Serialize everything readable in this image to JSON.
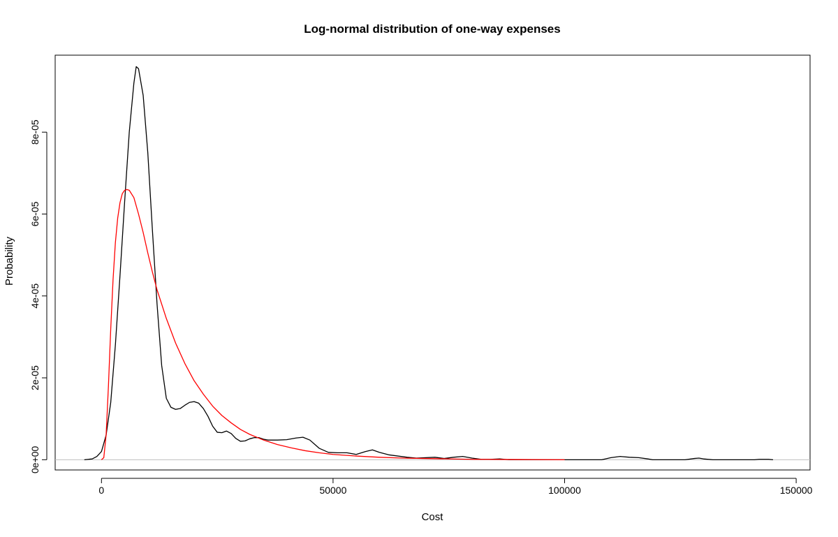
{
  "chart_data": {
    "type": "line",
    "title": "Log-normal distribution of one-way expenses",
    "xlabel": "Cost",
    "ylabel": "Probability",
    "xlim": [
      -10000,
      153000
    ],
    "ylim": [
      -2.5e-06,
      9.88e-05
    ],
    "x_ticks": [
      0,
      50000,
      100000,
      150000
    ],
    "x_tick_labels": [
      "0",
      "50000",
      "100000",
      "150000"
    ],
    "y_ticks": [
      0,
      2e-05,
      4e-05,
      6e-05,
      8e-05
    ],
    "y_tick_labels": [
      "0e+00",
      "2e-05",
      "4e-05",
      "6e-05",
      "8e-05"
    ],
    "reference_line": {
      "y": 0,
      "color": "#bebebe"
    },
    "grid": false,
    "series": [
      {
        "color": "#000000",
        "points": [
          [
            -3700,
            0
          ],
          [
            -2000,
            2e-07
          ],
          [
            -1000,
            8e-07
          ],
          [
            0,
            2e-06
          ],
          [
            1000,
            6e-06
          ],
          [
            2000,
            1.4e-05
          ],
          [
            3000,
            2.8e-05
          ],
          [
            4000,
            4.5e-05
          ],
          [
            5000,
            6.3e-05
          ],
          [
            6000,
            8e-05
          ],
          [
            7000,
            9.2e-05
          ],
          [
            7500,
            9.6e-05
          ],
          [
            8000,
            9.55e-05
          ],
          [
            9000,
            8.9e-05
          ],
          [
            10000,
            7.5e-05
          ],
          [
            11000,
            5.6e-05
          ],
          [
            12000,
            3.8e-05
          ],
          [
            13000,
            2.3e-05
          ],
          [
            14000,
            1.5e-05
          ],
          [
            15000,
            1.28e-05
          ],
          [
            16000,
            1.23e-05
          ],
          [
            17000,
            1.25e-05
          ],
          [
            18000,
            1.33e-05
          ],
          [
            19000,
            1.4e-05
          ],
          [
            20000,
            1.42e-05
          ],
          [
            21000,
            1.38e-05
          ],
          [
            22000,
            1.25e-05
          ],
          [
            23000,
            1.06e-05
          ],
          [
            24000,
            8.2e-06
          ],
          [
            25000,
            6.7e-06
          ],
          [
            26000,
            6.6e-06
          ],
          [
            27000,
            7e-06
          ],
          [
            28000,
            6.4e-06
          ],
          [
            29000,
            5.2e-06
          ],
          [
            30000,
            4.5e-06
          ],
          [
            31000,
            4.6e-06
          ],
          [
            32000,
            5.1e-06
          ],
          [
            33000,
            5.4e-06
          ],
          [
            34000,
            5.4e-06
          ],
          [
            35000,
            5e-06
          ],
          [
            36000,
            4.8e-06
          ],
          [
            38000,
            4.8e-06
          ],
          [
            40000,
            4.9e-06
          ],
          [
            42000,
            5.3e-06
          ],
          [
            43500,
            5.5e-06
          ],
          [
            45000,
            4.8e-06
          ],
          [
            47000,
            2.8e-06
          ],
          [
            49000,
            1.8e-06
          ],
          [
            51000,
            1.7e-06
          ],
          [
            53000,
            1.7e-06
          ],
          [
            55000,
            1.3e-06
          ],
          [
            57000,
            2e-06
          ],
          [
            58500,
            2.4e-06
          ],
          [
            60000,
            1.8e-06
          ],
          [
            62000,
            1.2e-06
          ],
          [
            64000,
            9e-07
          ],
          [
            66000,
            6e-07
          ],
          [
            68000,
            4e-07
          ],
          [
            70000,
            5e-07
          ],
          [
            72000,
            6e-07
          ],
          [
            74000,
            3e-07
          ],
          [
            76000,
            6e-07
          ],
          [
            78000,
            8e-07
          ],
          [
            80000,
            4e-07
          ],
          [
            82000,
            1e-07
          ],
          [
            84000,
            1e-07
          ],
          [
            86000,
            2e-07
          ],
          [
            88000,
            0
          ],
          [
            108000,
            0
          ],
          [
            110000,
            5e-07
          ],
          [
            112000,
            8e-07
          ],
          [
            114000,
            6e-07
          ],
          [
            116000,
            5e-07
          ],
          [
            118000,
            2e-07
          ],
          [
            119000,
            0
          ],
          [
            126000,
            0
          ],
          [
            128000,
            3e-07
          ],
          [
            129000,
            4e-07
          ],
          [
            130000,
            2e-07
          ],
          [
            132000,
            0
          ],
          [
            141000,
            0
          ],
          [
            142000,
            1e-07
          ],
          [
            144000,
            1e-07
          ],
          [
            145000,
            0
          ]
        ]
      },
      {
        "color": "#ff0000",
        "points": [
          [
            0,
            0
          ],
          [
            500,
            5e-07
          ],
          [
            1000,
            6e-06
          ],
          [
            1500,
            1.8e-05
          ],
          [
            2000,
            3.2e-05
          ],
          [
            2500,
            4.4e-05
          ],
          [
            3000,
            5.3e-05
          ],
          [
            3500,
            5.9e-05
          ],
          [
            4000,
            6.28e-05
          ],
          [
            4500,
            6.5e-05
          ],
          [
            5000,
            6.58e-05
          ],
          [
            5500,
            6.6e-05
          ],
          [
            6000,
            6.58e-05
          ],
          [
            7000,
            6.4e-05
          ],
          [
            8000,
            6e-05
          ],
          [
            9000,
            5.55e-05
          ],
          [
            10000,
            5.05e-05
          ],
          [
            11000,
            4.58e-05
          ],
          [
            12000,
            4.15e-05
          ],
          [
            14000,
            3.45e-05
          ],
          [
            16000,
            2.85e-05
          ],
          [
            18000,
            2.35e-05
          ],
          [
            20000,
            1.93e-05
          ],
          [
            22000,
            1.6e-05
          ],
          [
            24000,
            1.31e-05
          ],
          [
            26000,
            1.08e-05
          ],
          [
            28000,
            9e-06
          ],
          [
            30000,
            7.4e-06
          ],
          [
            32000,
            6.2e-06
          ],
          [
            35000,
            4.8e-06
          ],
          [
            38000,
            3.7e-06
          ],
          [
            41000,
            2.9e-06
          ],
          [
            44000,
            2.2e-06
          ],
          [
            47000,
            1.7e-06
          ],
          [
            50000,
            1.3e-06
          ],
          [
            55000,
            9e-07
          ],
          [
            60000,
            6e-07
          ],
          [
            65000,
            4e-07
          ],
          [
            70000,
            3e-07
          ],
          [
            80000,
            1e-07
          ],
          [
            90000,
            5e-08
          ],
          [
            100000,
            0
          ]
        ]
      }
    ]
  }
}
